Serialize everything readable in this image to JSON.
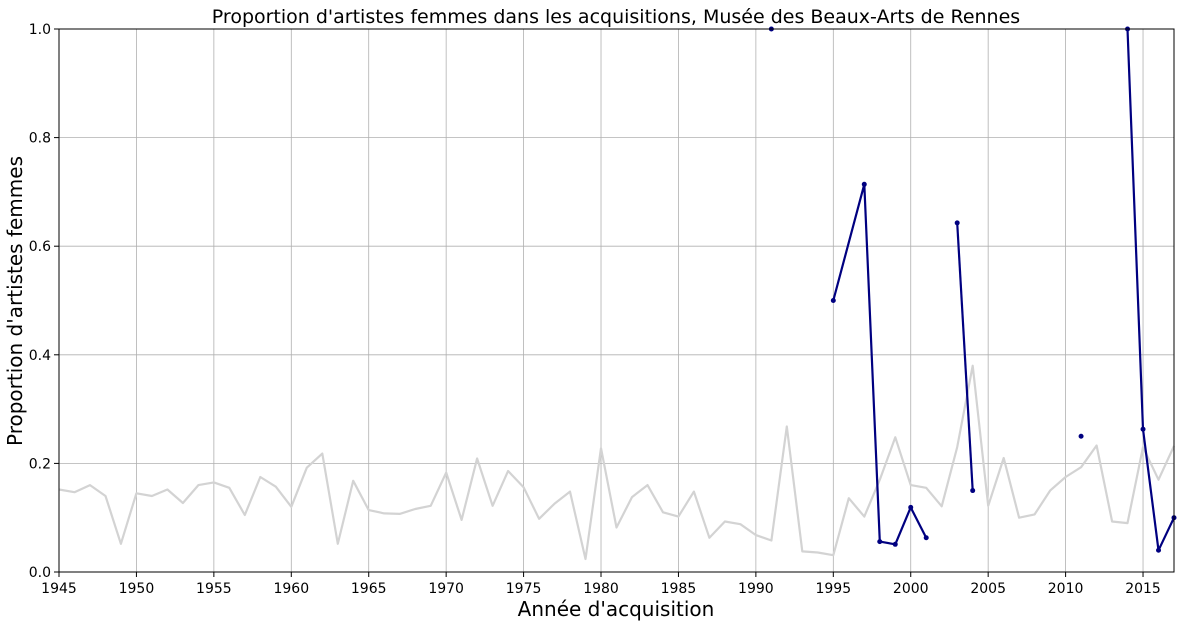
{
  "chart_data": {
    "type": "line",
    "title": "Proportion d'artistes femmes dans les acquisitions, Musée des Beaux-Arts de Rennes",
    "xlabel": "Année d'acquisition",
    "ylabel": "Proportion d'artistes femmes",
    "xlim": [
      1945,
      2017
    ],
    "ylim": [
      0,
      1.0
    ],
    "grid": true,
    "xticks": [
      "1945",
      "1950",
      "1955",
      "1960",
      "1965",
      "1970",
      "1975",
      "1980",
      "1985",
      "1990",
      "1995",
      "2000",
      "2005",
      "2010",
      "2015"
    ],
    "yticks": [
      "0.0",
      "0.2",
      "0.4",
      "0.6",
      "0.8",
      "1.0"
    ],
    "series": [
      {
        "color": "#d3d3d3",
        "markers": false,
        "points": [
          [
            1945,
            0.152
          ],
          [
            1946,
            0.147
          ],
          [
            1947,
            0.16
          ],
          [
            1948,
            0.14
          ],
          [
            1949,
            0.052
          ],
          [
            1950,
            0.145
          ],
          [
            1951,
            0.14
          ],
          [
            1952,
            0.152
          ],
          [
            1953,
            0.127
          ],
          [
            1954,
            0.16
          ],
          [
            1955,
            0.165
          ],
          [
            1956,
            0.155
          ],
          [
            1957,
            0.105
          ],
          [
            1958,
            0.175
          ],
          [
            1959,
            0.157
          ],
          [
            1960,
            0.12
          ],
          [
            1961,
            0.192
          ],
          [
            1962,
            0.218
          ],
          [
            1963,
            0.052
          ],
          [
            1964,
            0.168
          ],
          [
            1965,
            0.114
          ],
          [
            1966,
            0.108
          ],
          [
            1967,
            0.107
          ],
          [
            1968,
            0.116
          ],
          [
            1969,
            0.122
          ],
          [
            1970,
            0.183
          ],
          [
            1971,
            0.096
          ],
          [
            1972,
            0.209
          ],
          [
            1973,
            0.122
          ],
          [
            1974,
            0.186
          ],
          [
            1975,
            0.156
          ],
          [
            1976,
            0.098
          ],
          [
            1977,
            0.126
          ],
          [
            1978,
            0.148
          ],
          [
            1979,
            0.024
          ],
          [
            1980,
            0.228
          ],
          [
            1981,
            0.082
          ],
          [
            1982,
            0.138
          ],
          [
            1983,
            0.16
          ],
          [
            1984,
            0.11
          ],
          [
            1985,
            0.102
          ],
          [
            1986,
            0.148
          ],
          [
            1987,
            0.063
          ],
          [
            1988,
            0.093
          ],
          [
            1989,
            0.088
          ],
          [
            1990,
            0.068
          ],
          [
            1991,
            0.058
          ],
          [
            1992,
            0.268
          ],
          [
            1993,
            0.038
          ],
          [
            1994,
            0.036
          ],
          [
            1995,
            0.031
          ],
          [
            1996,
            0.136
          ],
          [
            1997,
            0.102
          ],
          [
            1998,
            0.17
          ],
          [
            1999,
            0.248
          ],
          [
            2000,
            0.16
          ],
          [
            2001,
            0.155
          ],
          [
            2002,
            0.121
          ],
          [
            2003,
            0.23
          ],
          [
            2004,
            0.38
          ],
          [
            2005,
            0.122
          ],
          [
            2006,
            0.21
          ],
          [
            2007,
            0.1
          ],
          [
            2008,
            0.106
          ],
          [
            2009,
            0.15
          ],
          [
            2010,
            0.175
          ],
          [
            2011,
            0.193
          ],
          [
            2012,
            0.233
          ],
          [
            2013,
            0.093
          ],
          [
            2014,
            0.09
          ],
          [
            2015,
            0.23
          ],
          [
            2016,
            0.17
          ],
          [
            2017,
            0.232
          ]
        ]
      },
      {
        "color": "#000080",
        "markers": true,
        "segments": [
          [
            [
              1991,
              1.0
            ]
          ],
          [
            [
              1995,
              0.5
            ],
            [
              1997,
              0.714
            ],
            [
              1998,
              0.056
            ],
            [
              1999,
              0.051
            ],
            [
              2000,
              0.119
            ],
            [
              2001,
              0.063
            ]
          ],
          [
            [
              2003,
              0.643
            ],
            [
              2004,
              0.15
            ]
          ],
          [
            [
              2011,
              0.25
            ]
          ],
          [
            [
              2014,
              1.0
            ],
            [
              2015,
              0.263
            ],
            [
              2016,
              0.04
            ],
            [
              2017,
              0.1
            ]
          ]
        ]
      }
    ]
  }
}
